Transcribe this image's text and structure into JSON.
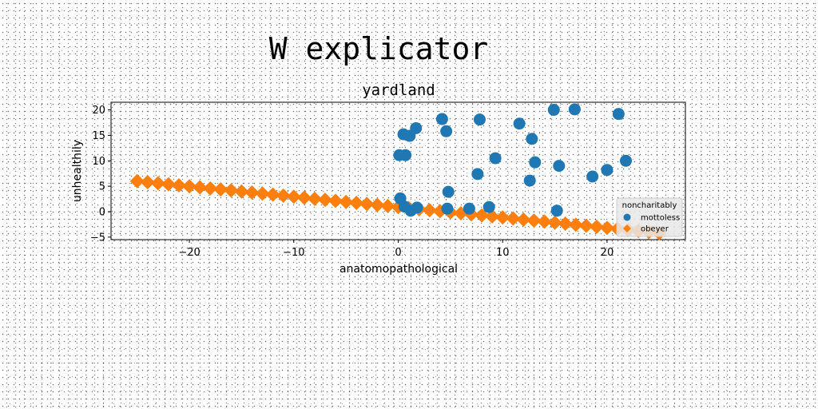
{
  "suptitle": "W explicator",
  "chart_data": {
    "type": "scatter",
    "title": "yardland",
    "xlabel": "anatomopathological",
    "ylabel": "unhealthily",
    "xlim": [
      -27.5,
      27.5
    ],
    "ylim": [
      -5.5,
      21.5
    ],
    "xticks": [
      -20,
      -10,
      0,
      10,
      20
    ],
    "yticks": [
      -5,
      0,
      5,
      10,
      15,
      20
    ],
    "grid": false,
    "legend": {
      "title": "noncharitably",
      "placement": "lower-right"
    },
    "series": [
      {
        "name": "mottoless",
        "color": "#1f77b4",
        "marker": "circle",
        "points": [
          [
            0.1,
            11.1
          ],
          [
            0.5,
            15.2
          ],
          [
            0.7,
            11.1
          ],
          [
            1.1,
            14.9
          ],
          [
            1.7,
            16.4
          ],
          [
            0.2,
            2.6
          ],
          [
            0.6,
            1.0
          ],
          [
            1.2,
            0.2
          ],
          [
            1.8,
            0.8
          ],
          [
            4.2,
            18.2
          ],
          [
            4.6,
            15.8
          ],
          [
            4.8,
            3.9
          ],
          [
            4.7,
            0.6
          ],
          [
            6.8,
            0.6
          ],
          [
            7.6,
            7.4
          ],
          [
            7.8,
            18.1
          ],
          [
            8.7,
            0.9
          ],
          [
            9.3,
            10.5
          ],
          [
            11.6,
            17.3
          ],
          [
            12.6,
            6.1
          ],
          [
            12.8,
            14.3
          ],
          [
            13.1,
            9.7
          ],
          [
            14.9,
            20.0
          ],
          [
            15.2,
            0.2
          ],
          [
            15.4,
            9.0
          ],
          [
            16.9,
            20.1
          ],
          [
            18.6,
            6.9
          ],
          [
            20.0,
            8.2
          ],
          [
            21.1,
            19.2
          ],
          [
            21.8,
            10.0
          ]
        ]
      },
      {
        "name": "obeyer",
        "color": "#ff7f0e",
        "marker": "diamond",
        "line": {
          "x_start": -25,
          "x_end": 25,
          "y_start": 6.0,
          "y_end": -4.2,
          "count": 51
        }
      }
    ]
  }
}
